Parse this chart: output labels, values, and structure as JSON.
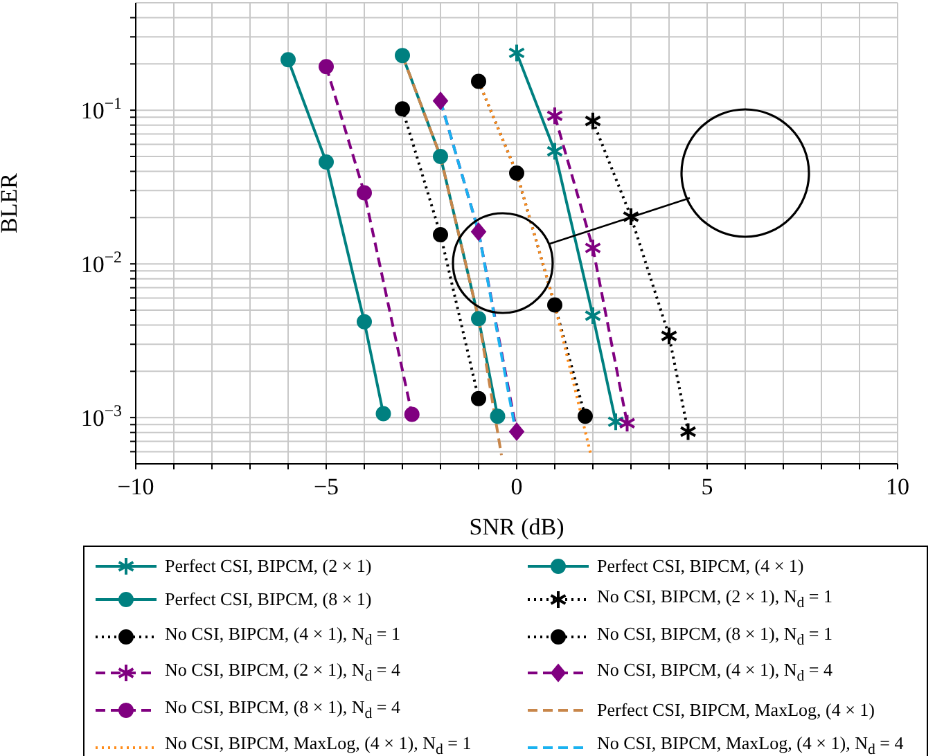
{
  "chart_data": {
    "type": "line",
    "xlabel": "SNR (dB)",
    "ylabel": "BLER",
    "log": "y",
    "grid": true,
    "legend": "bottom",
    "xlim": [
      -10,
      10
    ],
    "ylim": [
      0.0005,
      0.5
    ],
    "xticks": [
      {
        "value": -10,
        "label": "−10"
      },
      {
        "value": -9,
        "label": null
      },
      {
        "value": -8,
        "label": null
      },
      {
        "value": -7,
        "label": null
      },
      {
        "value": -6,
        "label": null
      },
      {
        "value": -5,
        "label": "−5"
      },
      {
        "value": -4,
        "label": null
      },
      {
        "value": -3,
        "label": null
      },
      {
        "value": -2,
        "label": null
      },
      {
        "value": -1,
        "label": null
      },
      0,
      {
        "value": 1,
        "label": null
      },
      {
        "value": 2,
        "label": null
      },
      {
        "value": 3,
        "label": null
      },
      {
        "value": 4,
        "label": null
      },
      5,
      {
        "value": 6,
        "label": null
      },
      {
        "value": 7,
        "label": null
      },
      {
        "value": 8,
        "label": null
      },
      {
        "value": 9,
        "label": null
      },
      10
    ],
    "yticks": [
      {
        "value": 0.0006,
        "label": null
      },
      {
        "value": 0.0007,
        "label": null
      },
      {
        "value": 0.0008,
        "label": null
      },
      {
        "value": 0.0009,
        "label": null
      },
      {
        "value": 0.001,
        "label": "10$^{−3}$"
      },
      {
        "value": 0.002,
        "label": null
      },
      {
        "value": 0.003,
        "label": null
      },
      {
        "value": 0.004,
        "label": null
      },
      {
        "value": 0.005,
        "label": null
      },
      {
        "value": 0.006,
        "label": null
      },
      {
        "value": 0.007,
        "label": null
      },
      {
        "value": 0.008,
        "label": null
      },
      {
        "value": 0.009,
        "label": null
      },
      {
        "value": 0.01,
        "label": "10$^{−2}$"
      },
      {
        "value": 0.02,
        "label": null
      },
      {
        "value": 0.03,
        "label": null
      },
      {
        "value": 0.04,
        "label": null
      },
      {
        "value": 0.05,
        "label": null
      },
      {
        "value": 0.06,
        "label": null
      },
      {
        "value": 0.07,
        "label": null
      },
      {
        "value": 0.08,
        "label": null
      },
      {
        "value": 0.09,
        "label": null
      },
      {
        "value": 0.1,
        "label": "10$^{−1}$"
      },
      {
        "value": 0.2,
        "label": null
      },
      {
        "value": 0.3,
        "label": null
      },
      {
        "value": 0.4,
        "label": null
      }
    ],
    "series": [
      {
        "name": "Perfect CSI, BIPCM, (2 × 1)",
        "color": "#008080",
        "marker": "cross",
        "line_style": "solid",
        "x": [
          0,
          1,
          2,
          2.6
        ],
        "values": [
          0.236,
          0.054,
          0.0046,
          0.00094
        ]
      },
      {
        "name": "Perfect CSI, BIPCM, (4 × 1)",
        "color": "#008080",
        "marker": "circle",
        "line_style": "solid",
        "x": [
          -3,
          -2,
          -1,
          -0.5
        ],
        "values": [
          0.227,
          0.05,
          0.0044,
          0.00102
        ]
      },
      {
        "name": "Perfect CSI, BIPCM, (8 × 1)",
        "color": "#008080",
        "marker": "circle",
        "line_style": "solid",
        "x": [
          -6,
          -5,
          -4,
          -3.5
        ],
        "values": [
          0.213,
          0.046,
          0.0042,
          0.00106
        ]
      },
      {
        "name": "No CSI, BIPCM, (2 × 1), N$_{d}$ = 1",
        "color": "#000000",
        "marker": "cross",
        "line_style": "dotted",
        "x": [
          2,
          3,
          4,
          4.5
        ],
        "values": [
          0.085,
          0.0203,
          0.0034,
          0.00081
        ]
      },
      {
        "name": "No CSI, BIPCM, (4 × 1), N$_{d}$ = 1",
        "color": "#000000",
        "marker": "circle",
        "line_style": "dotted",
        "x": [
          -1,
          0,
          1,
          1.8
        ],
        "values": [
          0.154,
          0.039,
          0.0054,
          0.00102
        ]
      },
      {
        "name": "No CSI, BIPCM, (8 × 1), N$_{d}$ = 1",
        "color": "#000000",
        "marker": "circle",
        "line_style": "dotted",
        "x": [
          -3,
          -2,
          -1
        ],
        "values": [
          0.102,
          0.0155,
          0.00133
        ]
      },
      {
        "name": "No CSI, BIPCM, (2 × 1), N$_{d}$ = 4",
        "color": "#800080",
        "marker": "cross",
        "line_style": "dashed",
        "x": [
          1,
          2,
          2.9
        ],
        "values": [
          0.092,
          0.0127,
          0.00092
        ]
      },
      {
        "name": "No CSI, BIPCM, (4 × 1), N$_{d}$ = 4",
        "color": "#800080",
        "marker": "diamond",
        "line_style": "dashed",
        "x": [
          -2,
          -1,
          0
        ],
        "values": [
          0.115,
          0.0162,
          0.00081
        ]
      },
      {
        "name": "No CSI, BIPCM, (8 × 1), N$_{d}$ = 4",
        "color": "#800080",
        "marker": "circle",
        "line_style": "dashed",
        "x": [
          -5,
          -4,
          -2.75
        ],
        "values": [
          0.192,
          0.029,
          0.00105
        ]
      },
      {
        "name": "Perfect CSI, BIPCM, MaxLog, (4 × 1)",
        "color": "#c8864a",
        "line_style": "dashed",
        "x": [
          -3,
          -2,
          -1,
          -0.4
        ],
        "values": [
          0.227,
          0.05,
          0.0044,
          0.00057
        ]
      },
      {
        "name": "No CSI, BIPCM, MaxLog, (4 × 1), N$_{d}$ = 1",
        "color": "#ff8c1a",
        "line_style": "dotted",
        "x": [
          -1,
          0,
          1,
          1.95
        ],
        "values": [
          0.154,
          0.039,
          0.0054,
          0.00057
        ]
      },
      {
        "name": "No CSI, BIPCM, MaxLog, (4 × 1), N$_{d}$ = 4",
        "color": "#1ab2f0",
        "line_style": "dashed",
        "x": [
          -2,
          -1,
          0
        ],
        "values": [
          0.115,
          0.0162,
          0.00075
        ]
      }
    ]
  }
}
